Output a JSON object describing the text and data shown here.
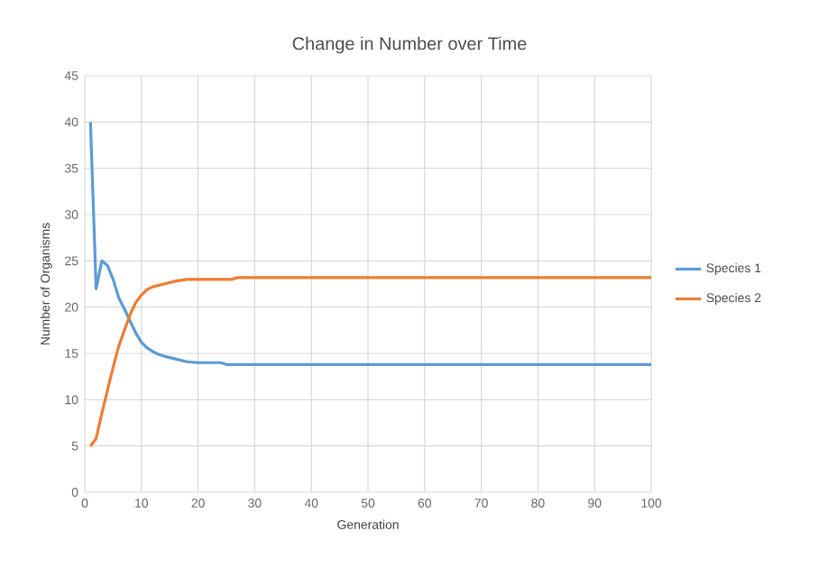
{
  "chart_data": {
    "type": "line",
    "title": "Change in Number over Time",
    "xlabel": "Generation",
    "ylabel": "Number of Organisms",
    "xlim": [
      0,
      100
    ],
    "xticks": [
      0,
      10,
      20,
      30,
      40,
      50,
      60,
      70,
      80,
      90,
      100
    ],
    "ylim": [
      0,
      45
    ],
    "yticks": [
      0,
      5,
      10,
      15,
      20,
      25,
      30,
      35,
      40,
      45
    ],
    "grid": true,
    "legend": "right",
    "marker": "none",
    "line_style": "solid",
    "series": [
      {
        "name": "Species 1",
        "color": "#5b9bd5",
        "x": [
          1,
          2,
          3,
          4,
          5,
          6,
          7,
          8,
          9,
          10,
          11,
          12,
          13,
          14,
          16,
          18,
          20,
          24,
          25,
          100
        ],
        "values": [
          40,
          22,
          25,
          24.5,
          23,
          21,
          19.8,
          18.5,
          17.2,
          16.2,
          15.6,
          15.2,
          14.9,
          14.7,
          14.4,
          14.1,
          14,
          14,
          13.8,
          13.8
        ]
      },
      {
        "name": "Species 2",
        "color": "#ed7d31",
        "x": [
          1,
          2,
          3,
          4,
          5,
          6,
          7,
          8,
          9,
          10,
          11,
          12,
          14,
          16,
          18,
          26,
          27,
          100
        ],
        "values": [
          5,
          5.8,
          8.5,
          11,
          13.5,
          15.8,
          17.5,
          19.2,
          20.5,
          21.3,
          21.9,
          22.2,
          22.5,
          22.8,
          23,
          23,
          23.2,
          23.2
        ]
      }
    ]
  }
}
